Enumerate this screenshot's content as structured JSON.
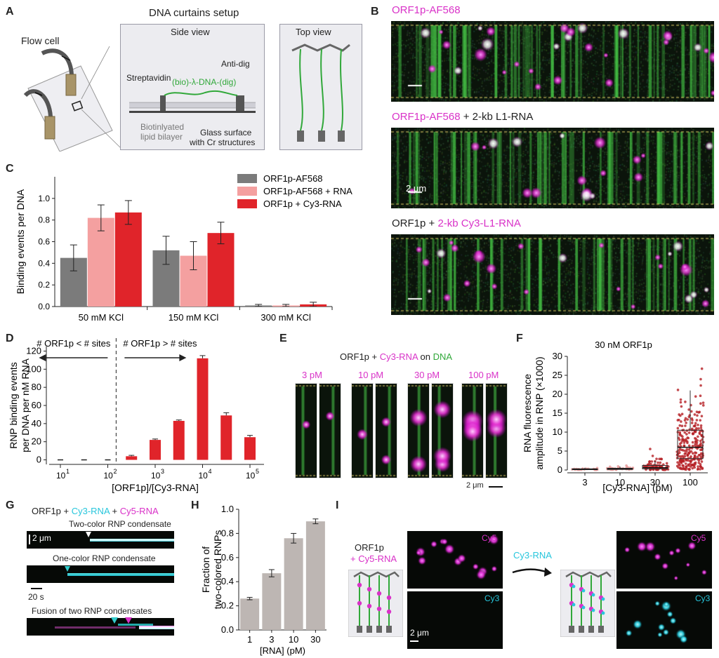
{
  "panels": [
    "A",
    "B",
    "C",
    "D",
    "E",
    "F",
    "G",
    "H",
    "I"
  ],
  "panelA": {
    "title": "DNA curtains setup",
    "flow_cell": "Flow cell",
    "side_view": "Side view",
    "top_view": "Top view",
    "streptavidin": "Streptavidin",
    "anti_dig": "Anti-dig",
    "dna": "(bio)-λ-DNA-(dig)",
    "lipid_line1": "Biotinlyated",
    "lipid_line2": "lipid bilayer",
    "glass_line1": "Glass surface",
    "glass_line2": "with Cr structures"
  },
  "panelB": {
    "row1": {
      "magenta": "ORF1p-AF568"
    },
    "row2": {
      "magenta": "ORF1p-AF568",
      "black": " + 2-kb L1-RNA"
    },
    "row3": {
      "black": "ORF1p + ",
      "magenta": "2-kb Cy3-L1-RNA"
    },
    "scale": "2 μm"
  },
  "panelC": {
    "chart_data": {
      "type": "bar",
      "categories": [
        "50 mM KCl",
        "150 mM KCl",
        "300 mM KCl"
      ],
      "series": [
        {
          "name": "ORF1p-AF568",
          "values": [
            0.45,
            0.52,
            0.01
          ],
          "errors": [
            0.12,
            0.13,
            0.01
          ],
          "color": "#7b7b7b"
        },
        {
          "name": "ORF1p-AF568 + RNA",
          "values": [
            0.82,
            0.47,
            0.01
          ],
          "errors": [
            0.12,
            0.13,
            0.01
          ],
          "color": "#f4a0a0"
        },
        {
          "name": "ORF1p + Cy3-RNA",
          "values": [
            0.87,
            0.68,
            0.02
          ],
          "errors": [
            0.11,
            0.1,
            0.02
          ],
          "color": "#e0242a"
        }
      ],
      "ylabel": "Binding events per DNA",
      "ylim": [
        0,
        1.2
      ],
      "yticks": [
        "0.0",
        "0.2",
        "0.4",
        "0.6",
        "0.8",
        "1.0"
      ],
      "legend": "top-right"
    }
  },
  "panelD": {
    "chart_data": {
      "type": "bar",
      "x": [
        10,
        31.6,
        100,
        316,
        1000,
        3162,
        10000,
        31623,
        100000
      ],
      "values": [
        0,
        0,
        0,
        4,
        22,
        43,
        112,
        49,
        25
      ],
      "errors": [
        0,
        0,
        0,
        1,
        1,
        1,
        3,
        3,
        2
      ],
      "color": "#e0242a",
      "ylabel_line1": "RNP binding events",
      "ylabel_line2": "per DNA per nM RNA",
      "xlabel": "[ORF1p]/[Cy3-RNA]",
      "xscale": "log",
      "xticks": [
        "10",
        "10",
        "10",
        "10",
        "10"
      ],
      "xtick_exponents": [
        "1",
        "2",
        "3",
        "4",
        "5"
      ],
      "ylim": [
        -5,
        125
      ],
      "yticks": [
        "0",
        "20",
        "40",
        "60",
        "80",
        "100",
        "120"
      ],
      "left_note": "# ORF1p < # sites",
      "right_note": "# ORF1p > # sites"
    }
  },
  "panelE": {
    "title": {
      "a": "ORF1p + ",
      "b": "Cy3-RNA",
      "c": " on ",
      "d": "DNA"
    },
    "concentrations": [
      "3 pM",
      "10 pM",
      "30 pM",
      "100 pM"
    ],
    "scale": "2 μm"
  },
  "panelF": {
    "chart_data": {
      "type": "scatter",
      "title": "30 nM ORF1p",
      "categories": [
        "3",
        "10",
        "30",
        "100"
      ],
      "medians": [
        0.2,
        0.3,
        0.6,
        6.0
      ],
      "q1": [
        0.1,
        0.15,
        0.3,
        3.0
      ],
      "q3": [
        0.3,
        0.45,
        1.2,
        10.5
      ],
      "max": [
        0.7,
        1.4,
        6.0,
        27.5
      ],
      "ylabel_line1": "RNA fluorescence",
      "ylabel_line2": "amplitude in RNP (×1000)",
      "xlabel": "[Cy3-RNA] (pM)",
      "ylim": [
        0,
        30
      ],
      "yticks": [
        "0",
        "5",
        "10",
        "15",
        "20",
        "25",
        "30"
      ],
      "color": "#b51f24"
    }
  },
  "panelG": {
    "title": {
      "a": "ORF1p + ",
      "b": "Cy3-RNA",
      "c": " + ",
      "d": "Cy5-RNA"
    },
    "kymo1": "Two-color RNP condensate",
    "kymo2": "One-color RNP condensate",
    "kymo3": "Fusion of two RNP condensates",
    "scale_y": "2 μm",
    "scale_x": "20 s"
  },
  "panelH": {
    "chart_data": {
      "type": "bar",
      "categories": [
        "1",
        "3",
        "10",
        "30"
      ],
      "values": [
        0.26,
        0.47,
        0.76,
        0.9
      ],
      "errors": [
        0.01,
        0.03,
        0.04,
        0.02
      ],
      "color": "#bdb6b3",
      "ylabel_line1": "Fraction of",
      "ylabel_line2": "two-colored RNPs",
      "xlabel": "[RNA] (pM)",
      "ylim": [
        0,
        1.0
      ],
      "yticks": [
        "0.0",
        "0.2",
        "0.4",
        "0.6",
        "0.8",
        "1.0"
      ]
    }
  },
  "panelI": {
    "label_a": "ORF1p",
    "label_b": "+ Cy5-RNA",
    "arrow_label": "Cy3-RNA",
    "cy5": "Cy5",
    "cy3": "Cy3",
    "scale": "2 μm"
  }
}
